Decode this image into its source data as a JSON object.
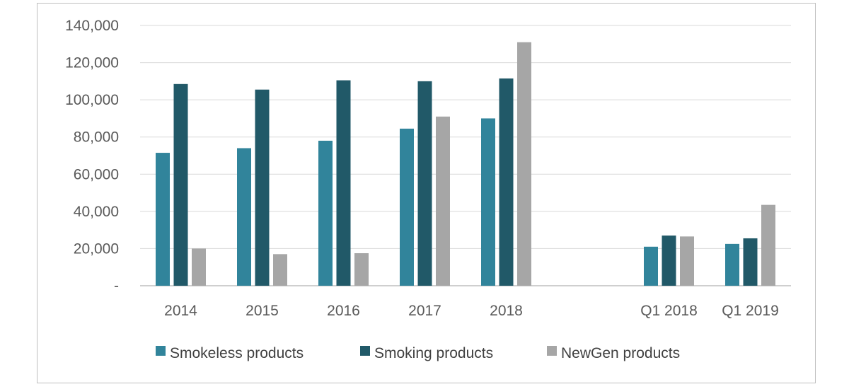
{
  "chart_data": {
    "type": "bar",
    "categories": [
      "2014",
      "2015",
      "2016",
      "2017",
      "2018",
      "",
      "Q1 2018",
      "Q1 2019"
    ],
    "series": [
      {
        "name": "Smokeless products",
        "color": "#31849b",
        "values": [
          71500,
          74000,
          78000,
          84500,
          90000,
          null,
          21000,
          22500
        ]
      },
      {
        "name": "Smoking products",
        "color": "#215968",
        "values": [
          108500,
          105500,
          110500,
          110000,
          111500,
          null,
          27000,
          25500
        ]
      },
      {
        "name": "NewGen products",
        "color": "#a6a6a6",
        "values": [
          20000,
          17000,
          17500,
          91000,
          131000,
          null,
          26500,
          43500
        ]
      }
    ],
    "ylim": [
      0,
      140000
    ],
    "yticks": [
      0,
      20000,
      40000,
      60000,
      80000,
      100000,
      120000,
      140000
    ],
    "ytick_labels": [
      "-",
      "20,000",
      "40,000",
      "60,000",
      "80,000",
      "100,000",
      "120,000",
      "140,000"
    ],
    "title": "",
    "xlabel": "",
    "ylabel": "",
    "grid": true,
    "legend_position": "bottom"
  }
}
